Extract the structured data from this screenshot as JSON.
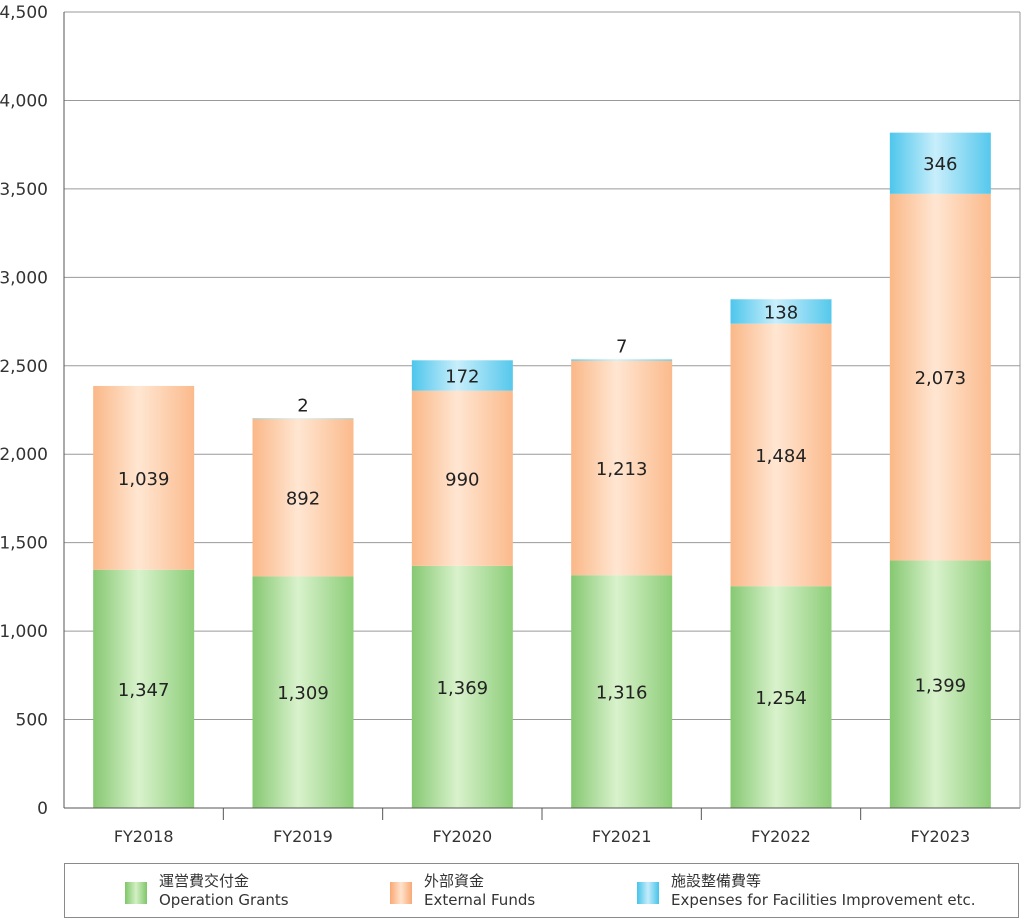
{
  "chart_data": {
    "type": "bar",
    "stacked": true,
    "categories": [
      "FY2018",
      "FY2019",
      "FY2020",
      "FY2021",
      "FY2022",
      "FY2023"
    ],
    "series": [
      {
        "name": "運営費交付金 Operation Grants",
        "values": [
          1347,
          1309,
          1369,
          1316,
          1254,
          1399
        ],
        "labels": [
          "1,347",
          "1,309",
          "1,369",
          "1,316",
          "1,254",
          "1,399"
        ],
        "color": "#a8dc90"
      },
      {
        "name": "外部資金 External Funds",
        "values": [
          1039,
          892,
          990,
          1213,
          1484,
          2073
        ],
        "labels": [
          "1,039",
          "892",
          "990",
          "1,213",
          "1,484",
          "2,073"
        ],
        "color": "#fcc49a"
      },
      {
        "name": "施設整備費等 Expenses for Facilities Improvement etc.",
        "values": [
          0,
          2,
          172,
          7,
          138,
          346
        ],
        "labels": [
          "",
          "2",
          "172",
          "7",
          "138",
          "346"
        ],
        "color": "#8ad8f0"
      }
    ],
    "yticks": [
      "0",
      "500",
      "1,000",
      "1,500",
      "2,000",
      "2,500",
      "3,000",
      "3,500",
      "4,000",
      "4,500"
    ],
    "ylim": [
      0,
      4500
    ],
    "grid": true,
    "legend_position": "bottom"
  },
  "legend": [
    {
      "jp": "運営費交付金",
      "en": "Operation Grants",
      "color": "#a8dc90"
    },
    {
      "jp": "外部資金",
      "en": "External Funds",
      "color": "#fcc49a"
    },
    {
      "jp": "施設整備費等",
      "en": "Expenses for Facilities Improvement etc.",
      "color": "#8ad8f0"
    }
  ]
}
